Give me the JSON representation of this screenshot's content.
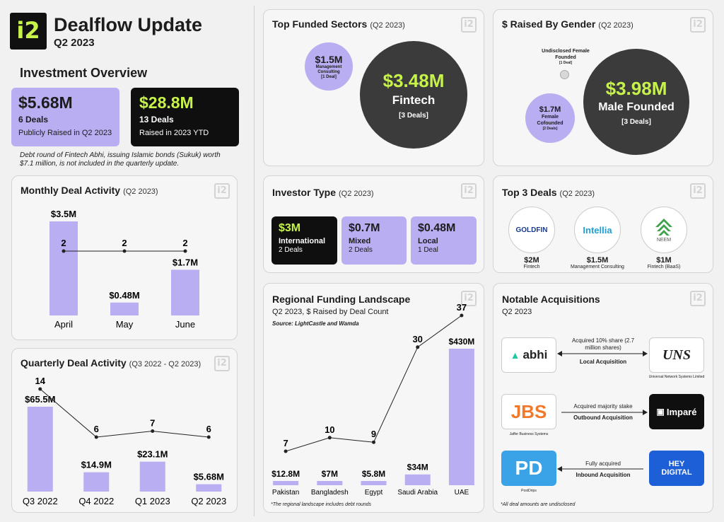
{
  "header": {
    "logo_text": "i2",
    "title": "Dealflow Update",
    "subtitle": "Q2 2023"
  },
  "overview": {
    "heading": "Investment Overview",
    "card1": {
      "amount": "$5.68M",
      "deals": "6 Deals",
      "desc": "Publicly Raised in Q2 2023"
    },
    "card2": {
      "amount": "$28.8M",
      "deals": "13 Deals",
      "desc": "Raised in 2023 YTD"
    },
    "note": "Debt round of Fintech Abhi, issuing Islamic bonds (Sukuk) worth $7.1 million, is not included in the quarterly update."
  },
  "monthly": {
    "title": "Monthly Deal Activity",
    "period": "(Q2 2023)",
    "chart_data": {
      "type": "bar",
      "categories": [
        "April",
        "May",
        "June"
      ],
      "values": [
        3.5,
        0.48,
        1.7
      ],
      "value_labels": [
        "$3.5M",
        "$0.48M",
        "$1.7M"
      ],
      "counts": [
        2,
        2,
        2
      ],
      "ylim": [
        0,
        3.5
      ]
    }
  },
  "quarterly": {
    "title": "Quarterly Deal Activity",
    "period": "(Q3 2022 - Q2 2023)",
    "chart_data": {
      "type": "bar",
      "categories": [
        "Q3 2022",
        "Q4 2022",
        "Q1 2023",
        "Q2 2023"
      ],
      "values": [
        65.5,
        14.9,
        23.1,
        5.68
      ],
      "value_labels": [
        "$65.5M",
        "$14.9M",
        "$23.1M",
        "$5.68M"
      ],
      "counts": [
        14,
        6,
        7,
        6
      ],
      "ylim": [
        0,
        65.5
      ]
    }
  },
  "sectors": {
    "title": "Top Funded Sectors",
    "period": "(Q2 2023)",
    "big": {
      "amount": "$3.48M",
      "name": "Fintech",
      "deals": "[3 Deals]"
    },
    "small": {
      "amount": "$1.5M",
      "name": "Management Consulting",
      "deals": "[1 Deal]"
    }
  },
  "gender": {
    "title": "$ Raised By Gender",
    "period": "(Q2 2023)",
    "male": {
      "amount": "$3.98M",
      "name": "Male Founded",
      "deals": "[3 Deals]"
    },
    "cofounded": {
      "amount": "$1.7M",
      "name": "Female Cofounded",
      "deals": "[2 Deals]"
    },
    "female": {
      "name": "Undisclosed Female Founded",
      "deals": "[1 Deal]"
    }
  },
  "investor": {
    "title": "Investor Type",
    "period": "(Q2 2023)",
    "types": [
      {
        "amount": "$3M",
        "name": "International",
        "deals": "2 Deals"
      },
      {
        "amount": "$0.7M",
        "name": "Mixed",
        "deals": "2 Deals"
      },
      {
        "amount": "$0.48M",
        "name": "Local",
        "deals": "1 Deal"
      }
    ]
  },
  "top_deals": {
    "title": "Top 3 Deals",
    "period": "(Q2 2023)",
    "deals": [
      {
        "logo": "GOLDFIN",
        "amount": "$2M",
        "sector": "Fintech"
      },
      {
        "logo": "Intellia",
        "amount": "$1.5M",
        "sector": "Management Consulting"
      },
      {
        "logo": "NEEM",
        "amount": "$1M",
        "sector": "Fintech (BaaS)"
      }
    ]
  },
  "regional": {
    "title": "Regional Funding Landscape",
    "subtitle": "Q2 2023, $ Raised by Deal Count",
    "source": "Source: LightCastle and Wamda",
    "footnote": "*The regional landscape includes debt rounds",
    "chart_data": {
      "type": "bar",
      "categories": [
        "Pakistan",
        "Bangladesh",
        "Egypt",
        "Saudi Arabia",
        "UAE"
      ],
      "values": [
        12.8,
        7,
        5.8,
        34,
        430
      ],
      "value_labels": [
        "$12.8M",
        "$7M",
        "$5.8M",
        "$34M",
        "$430M"
      ],
      "counts": [
        7,
        10,
        9,
        30,
        37
      ],
      "ylim": [
        0,
        430
      ]
    }
  },
  "acquisitions": {
    "title": "Notable Acquisitions",
    "period": "Q2 2023",
    "footnote": "*All deal amounts are undisclosed",
    "rows": [
      {
        "from": "abhi",
        "from_caption": "",
        "desc": "Acquired 10% share (2.7 million shares)",
        "type": "Local Acquisition",
        "to": "UNS",
        "to_caption": "Universal Network Systems Limited"
      },
      {
        "from": "JBS",
        "from_caption": "Jaffer Business Systems",
        "desc": "Acquired majority stake",
        "type": "Outbound Acquisition",
        "to": "Imparé",
        "to_caption": ""
      },
      {
        "from": "PD",
        "from_caption": "PostDrips",
        "desc": "Fully acquired",
        "type": "Inbound Acquisition",
        "to": "HEY DIGITAL",
        "to_caption": ""
      }
    ]
  },
  "colors": {
    "purple": "#b9aef2",
    "dark": "#0f0f0f",
    "lime": "#c7f24a",
    "gray_circle": "#3b3b3b"
  }
}
